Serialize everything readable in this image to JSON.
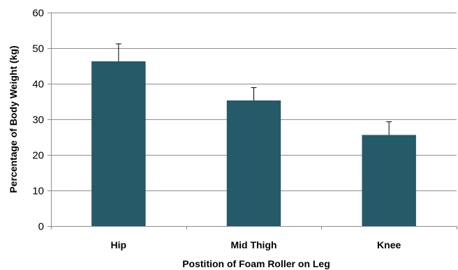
{
  "chart_data": {
    "type": "bar",
    "title": "",
    "xlabel": "Postition of Foam Roller on Leg",
    "ylabel": "Percentage of Body Weight (kg)",
    "categories": [
      "Hip",
      "Mid Thigh",
      "Knee"
    ],
    "values": [
      46.3,
      35.3,
      25.6
    ],
    "error_bars": [
      4.9,
      3.6,
      3.7
    ],
    "ylim": [
      0,
      60
    ],
    "yticks": [
      0,
      10,
      20,
      30,
      40,
      50,
      60
    ],
    "grid": true,
    "legend": "none",
    "bar_color": "#255a68",
    "grid_color": "#8c8c8c"
  }
}
